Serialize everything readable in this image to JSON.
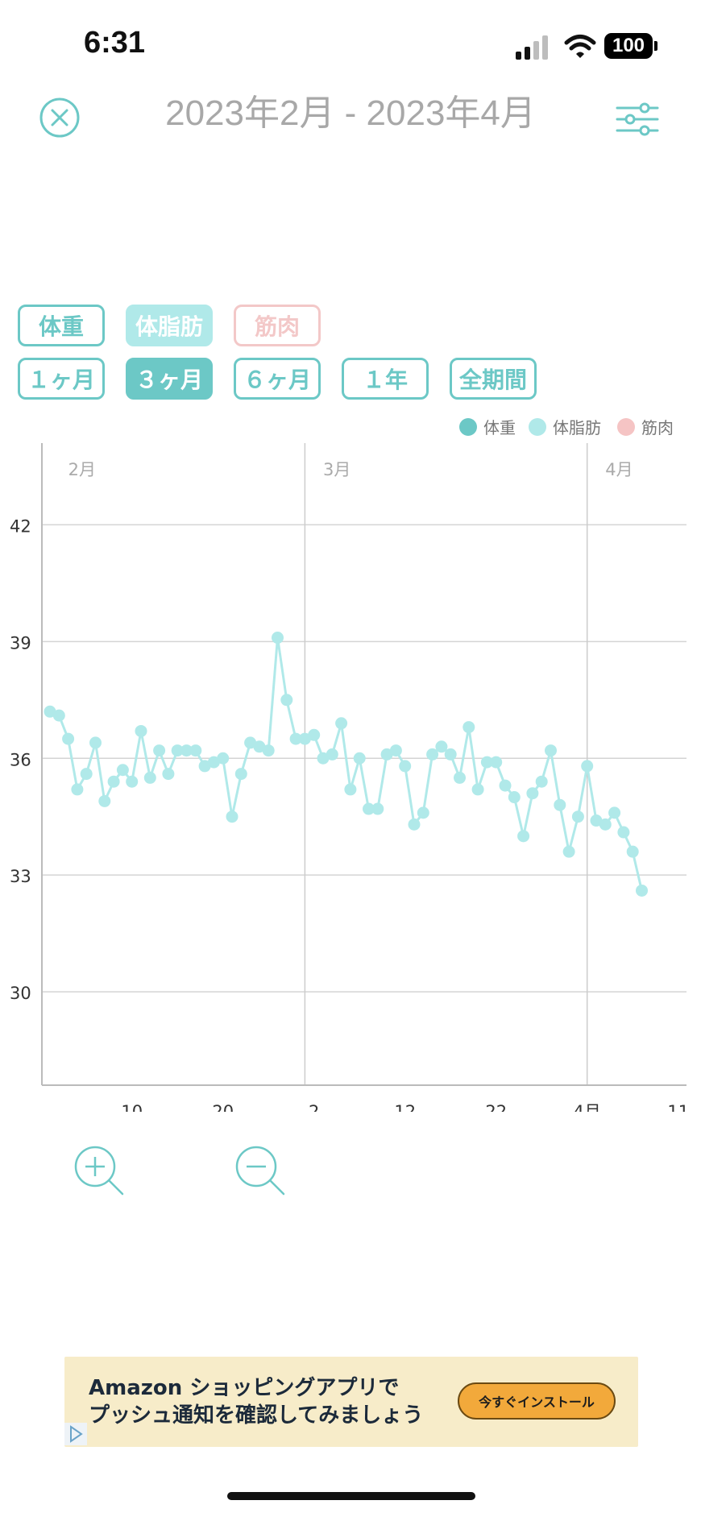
{
  "status_bar": {
    "time": "6:31",
    "battery": "100"
  },
  "header": {
    "title": "2023年2月 - 2023年4月",
    "close_icon": "close-circle-icon",
    "settings_icon": "sliders-icon"
  },
  "metric_chips": [
    {
      "label": "体重",
      "state": "outline"
    },
    {
      "label": "体脂肪",
      "state": "selected"
    },
    {
      "label": "筋肉",
      "state": "disabled"
    }
  ],
  "range_chips": [
    {
      "label": "１ヶ月",
      "active": false
    },
    {
      "label": "３ヶ月",
      "active": true
    },
    {
      "label": "６ヶ月",
      "active": false
    },
    {
      "label": "１年",
      "active": false
    },
    {
      "label": "全期間",
      "active": false
    }
  ],
  "legend": [
    {
      "label": "体重",
      "color": "#6cc8c6"
    },
    {
      "label": "体脂肪",
      "color": "#b0e9e9"
    },
    {
      "label": "筋肉",
      "color": "#f5c4c4"
    }
  ],
  "chart_data": {
    "type": "line",
    "month_labels": [
      "2月",
      "3月",
      "4月"
    ],
    "x_tick_labels": [
      "10",
      "20",
      "2",
      "12",
      "22",
      "4月",
      "11"
    ],
    "y_ticks": [
      30,
      33,
      36,
      39,
      42
    ],
    "ylim": [
      27.6,
      44.1
    ],
    "series": [
      {
        "name": "体脂肪",
        "color": "#b0e9e9",
        "x": [
          "2023-02-01",
          "2023-02-02",
          "2023-02-03",
          "2023-02-04",
          "2023-02-05",
          "2023-02-06",
          "2023-02-07",
          "2023-02-08",
          "2023-02-09",
          "2023-02-10",
          "2023-02-11",
          "2023-02-12",
          "2023-02-13",
          "2023-02-14",
          "2023-02-15",
          "2023-02-16",
          "2023-02-17",
          "2023-02-18",
          "2023-02-19",
          "2023-02-20",
          "2023-02-21",
          "2023-02-22",
          "2023-02-23",
          "2023-02-24",
          "2023-02-25",
          "2023-02-26",
          "2023-02-27",
          "2023-02-28",
          "2023-03-01",
          "2023-03-02",
          "2023-03-03",
          "2023-03-04",
          "2023-03-05",
          "2023-03-06",
          "2023-03-07",
          "2023-03-08",
          "2023-03-09",
          "2023-03-10",
          "2023-03-11",
          "2023-03-12",
          "2023-03-13",
          "2023-03-14",
          "2023-03-15",
          "2023-03-16",
          "2023-03-17",
          "2023-03-18",
          "2023-03-19",
          "2023-03-20",
          "2023-03-21",
          "2023-03-22",
          "2023-03-23",
          "2023-03-24",
          "2023-03-25",
          "2023-03-26",
          "2023-03-27",
          "2023-03-28",
          "2023-03-29",
          "2023-03-30",
          "2023-03-31",
          "2023-04-01",
          "2023-04-02",
          "2023-04-03",
          "2023-04-04",
          "2023-04-05",
          "2023-04-06",
          "2023-04-07"
        ],
        "values": [
          37.2,
          37.1,
          36.5,
          35.2,
          35.6,
          36.4,
          34.9,
          35.4,
          35.7,
          35.4,
          36.7,
          35.5,
          36.2,
          35.6,
          36.2,
          36.2,
          36.2,
          35.8,
          35.9,
          36.0,
          34.5,
          35.6,
          36.4,
          36.3,
          36.2,
          39.1,
          37.5,
          36.5,
          36.5,
          36.6,
          36.0,
          36.1,
          36.9,
          35.2,
          36.0,
          34.7,
          34.7,
          36.1,
          36.2,
          35.8,
          34.3,
          34.6,
          36.1,
          36.3,
          36.1,
          35.5,
          36.8,
          35.2,
          35.9,
          35.9,
          35.3,
          35.0,
          34.0,
          35.1,
          35.4,
          36.2,
          34.8,
          33.6,
          34.5,
          35.8,
          34.4,
          34.3,
          34.6,
          34.1,
          33.6,
          32.6
        ]
      }
    ]
  },
  "zoom": {
    "in_icon": "zoom-in-icon",
    "out_icon": "zoom-out-icon"
  },
  "ad": {
    "line1": "Amazon ショッピングアプリで",
    "line2": "プッシュ通知を確認してみましょう",
    "button": "今すぐインストール"
  }
}
